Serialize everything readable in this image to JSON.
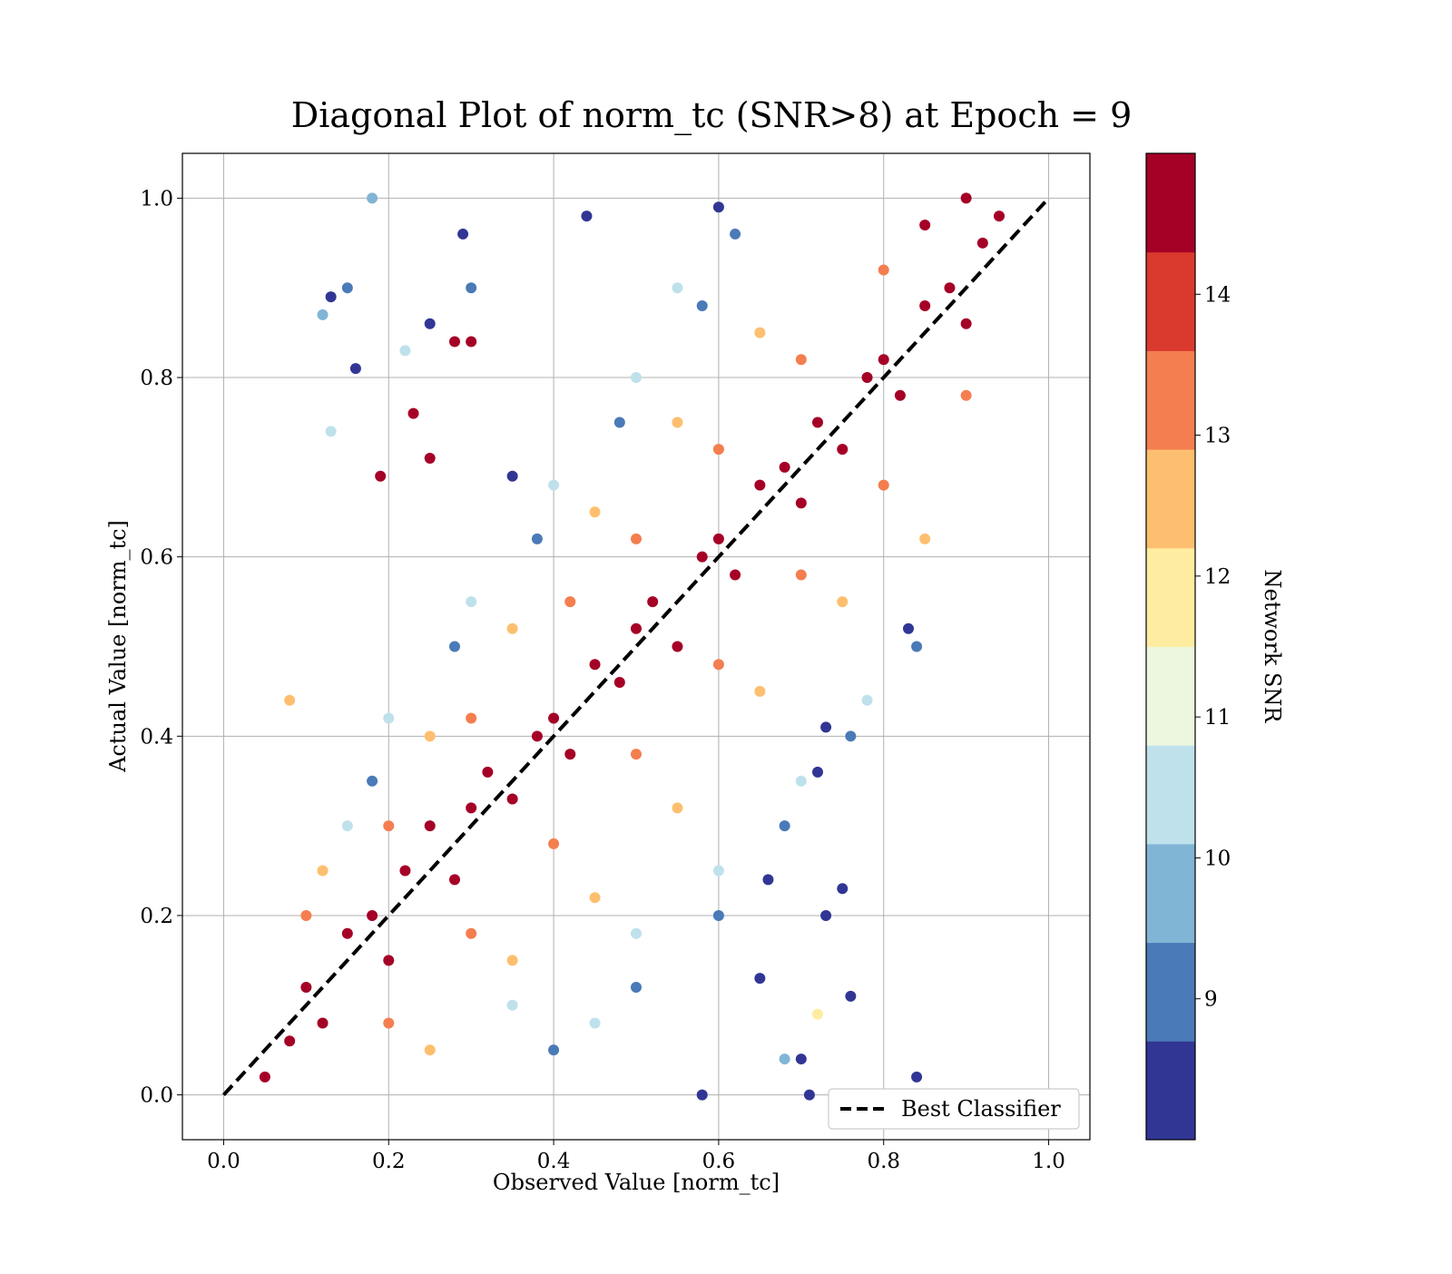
{
  "chart_data": {
    "type": "scatter",
    "title": "Diagonal Plot of norm_tc (SNR>8) at Epoch = 9",
    "xlabel": "Observed Value [norm_tc]",
    "ylabel": "Actual Value [norm_tc]",
    "xlim": [
      -0.05,
      1.05
    ],
    "ylim": [
      -0.05,
      1.05
    ],
    "xticks": [
      0.0,
      0.2,
      0.4,
      0.6,
      0.8,
      1.0
    ],
    "yticks": [
      0.0,
      0.2,
      0.4,
      0.6,
      0.8,
      1.0
    ],
    "xtick_labels": [
      "0.0",
      "0.2",
      "0.4",
      "0.6",
      "0.8",
      "1.0"
    ],
    "ytick_labels": [
      "0.0",
      "0.2",
      "0.4",
      "0.6",
      "0.8",
      "1.0"
    ],
    "grid": true,
    "reference_line": {
      "label": "Best Classifier",
      "style": "dashed",
      "color": "#000000",
      "x": [
        0.0,
        1.0
      ],
      "y": [
        0.0,
        1.0
      ]
    },
    "legend": {
      "entries": [
        "Best Classifier"
      ],
      "placement": "lower-right"
    },
    "colorbar": {
      "label": "Network SNR",
      "range": [
        8,
        15
      ],
      "tick_values": [
        9,
        10,
        11,
        12,
        13,
        14
      ],
      "tick_labels": [
        "9",
        "10",
        "11",
        "12",
        "13",
        "14"
      ],
      "bins": [
        {
          "from": 8.0,
          "to": 8.7,
          "color": "#313695"
        },
        {
          "from": 8.7,
          "to": 9.4,
          "color": "#4a7ab7"
        },
        {
          "from": 9.4,
          "to": 10.1,
          "color": "#81b5d5"
        },
        {
          "from": 10.1,
          "to": 10.8,
          "color": "#bfe1ec"
        },
        {
          "from": 10.8,
          "to": 11.5,
          "color": "#edf7e0"
        },
        {
          "from": 11.5,
          "to": 12.2,
          "color": "#feeda1"
        },
        {
          "from": 12.2,
          "to": 12.9,
          "color": "#fdbf6f"
        },
        {
          "from": 12.9,
          "to": 13.6,
          "color": "#f47e4f"
        },
        {
          "from": 13.6,
          "to": 14.3,
          "color": "#da3a2e"
        },
        {
          "from": 14.3,
          "to": 15.0,
          "color": "#a50026"
        }
      ]
    },
    "points_note": "",
    "series": [
      {
        "name": "",
        "points": [
          [
            0.05,
            0.02,
            15
          ],
          [
            0.08,
            0.06,
            15
          ],
          [
            0.1,
            0.12,
            15
          ],
          [
            0.12,
            0.08,
            15
          ],
          [
            0.15,
            0.18,
            15
          ],
          [
            0.18,
            0.2,
            15
          ],
          [
            0.2,
            0.15,
            15
          ],
          [
            0.22,
            0.25,
            15
          ],
          [
            0.25,
            0.3,
            15
          ],
          [
            0.28,
            0.24,
            15
          ],
          [
            0.3,
            0.32,
            15
          ],
          [
            0.32,
            0.36,
            15
          ],
          [
            0.35,
            0.33,
            15
          ],
          [
            0.38,
            0.4,
            15
          ],
          [
            0.4,
            0.42,
            15
          ],
          [
            0.42,
            0.38,
            15
          ],
          [
            0.45,
            0.48,
            15
          ],
          [
            0.48,
            0.46,
            15
          ],
          [
            0.5,
            0.52,
            15
          ],
          [
            0.52,
            0.55,
            15
          ],
          [
            0.55,
            0.5,
            15
          ],
          [
            0.58,
            0.6,
            15
          ],
          [
            0.6,
            0.62,
            15
          ],
          [
            0.62,
            0.58,
            15
          ],
          [
            0.65,
            0.68,
            15
          ],
          [
            0.68,
            0.7,
            15
          ],
          [
            0.7,
            0.66,
            15
          ],
          [
            0.72,
            0.75,
            15
          ],
          [
            0.75,
            0.72,
            15
          ],
          [
            0.78,
            0.8,
            15
          ],
          [
            0.8,
            0.82,
            15
          ],
          [
            0.82,
            0.78,
            15
          ],
          [
            0.85,
            0.88,
            15
          ],
          [
            0.88,
            0.9,
            15
          ],
          [
            0.9,
            0.86,
            15
          ],
          [
            0.92,
            0.95,
            15
          ],
          [
            0.94,
            0.98,
            15
          ],
          [
            0.9,
            1.0,
            15
          ],
          [
            0.85,
            0.97,
            15
          ],
          [
            0.1,
            0.2,
            13.5
          ],
          [
            0.2,
            0.3,
            13.5
          ],
          [
            0.3,
            0.42,
            13.5
          ],
          [
            0.42,
            0.55,
            13.5
          ],
          [
            0.5,
            0.62,
            13.5
          ],
          [
            0.6,
            0.72,
            13.5
          ],
          [
            0.7,
            0.82,
            13.5
          ],
          [
            0.8,
            0.92,
            13.5
          ],
          [
            0.2,
            0.08,
            13.5
          ],
          [
            0.3,
            0.18,
            13.5
          ],
          [
            0.4,
            0.28,
            13.5
          ],
          [
            0.5,
            0.38,
            13.5
          ],
          [
            0.6,
            0.48,
            13.5
          ],
          [
            0.7,
            0.58,
            13.5
          ],
          [
            0.8,
            0.68,
            13.5
          ],
          [
            0.9,
            0.78,
            13.5
          ],
          [
            0.12,
            0.25,
            12.5
          ],
          [
            0.25,
            0.4,
            12.5
          ],
          [
            0.35,
            0.52,
            12.5
          ],
          [
            0.45,
            0.65,
            12.5
          ],
          [
            0.55,
            0.75,
            12.5
          ],
          [
            0.65,
            0.85,
            12.5
          ],
          [
            0.25,
            0.05,
            12.5
          ],
          [
            0.35,
            0.15,
            12.5
          ],
          [
            0.45,
            0.22,
            12.5
          ],
          [
            0.55,
            0.32,
            12.5
          ],
          [
            0.65,
            0.45,
            12.5
          ],
          [
            0.75,
            0.55,
            12.5
          ],
          [
            0.85,
            0.62,
            12.5
          ],
          [
            0.08,
            0.44,
            12.5
          ],
          [
            0.72,
            0.09,
            12
          ],
          [
            0.15,
            0.3,
            10.5
          ],
          [
            0.2,
            0.42,
            10.5
          ],
          [
            0.3,
            0.55,
            10.5
          ],
          [
            0.4,
            0.68,
            10.5
          ],
          [
            0.5,
            0.8,
            10.5
          ],
          [
            0.55,
            0.9,
            10.5
          ],
          [
            0.35,
            0.1,
            10.5
          ],
          [
            0.45,
            0.08,
            10.5
          ],
          [
            0.5,
            0.18,
            10.5
          ],
          [
            0.6,
            0.25,
            10.5
          ],
          [
            0.7,
            0.35,
            10.5
          ],
          [
            0.78,
            0.44,
            10.5
          ],
          [
            0.12,
            0.87,
            10
          ],
          [
            0.13,
            0.74,
            10.5
          ],
          [
            0.22,
            0.83,
            10.5
          ],
          [
            0.18,
            1.0,
            10
          ],
          [
            0.68,
            0.04,
            10
          ],
          [
            0.18,
            0.35,
            9
          ],
          [
            0.28,
            0.5,
            9
          ],
          [
            0.38,
            0.62,
            9
          ],
          [
            0.48,
            0.75,
            9
          ],
          [
            0.58,
            0.88,
            9
          ],
          [
            0.62,
            0.96,
            9
          ],
          [
            0.4,
            0.05,
            9
          ],
          [
            0.5,
            0.12,
            9
          ],
          [
            0.6,
            0.2,
            9
          ],
          [
            0.68,
            0.3,
            9
          ],
          [
            0.76,
            0.4,
            9
          ],
          [
            0.84,
            0.5,
            9
          ],
          [
            0.15,
            0.9,
            9
          ],
          [
            0.3,
            0.9,
            9
          ],
          [
            0.13,
            0.89,
            8.2
          ],
          [
            0.16,
            0.81,
            8.2
          ],
          [
            0.25,
            0.86,
            8.2
          ],
          [
            0.29,
            0.96,
            8.2
          ],
          [
            0.35,
            0.69,
            8.2
          ],
          [
            0.44,
            0.98,
            8.2
          ],
          [
            0.6,
            0.99,
            8.2
          ],
          [
            0.66,
            0.24,
            8.2
          ],
          [
            0.73,
            0.2,
            8.2
          ],
          [
            0.75,
            0.23,
            8.2
          ],
          [
            0.72,
            0.36,
            8.2
          ],
          [
            0.73,
            0.41,
            8.2
          ],
          [
            0.76,
            0.11,
            8.2
          ],
          [
            0.84,
            0.02,
            8.2
          ],
          [
            0.83,
            0.52,
            8.2
          ],
          [
            0.7,
            0.04,
            8.2
          ],
          [
            0.65,
            0.13,
            8.2
          ],
          [
            0.71,
            0.0,
            8.2
          ],
          [
            0.58,
            0.0,
            8.2
          ],
          [
            0.28,
            0.84,
            15
          ],
          [
            0.3,
            0.84,
            15
          ],
          [
            0.23,
            0.76,
            15
          ],
          [
            0.25,
            0.71,
            15
          ],
          [
            0.19,
            0.69,
            15
          ]
        ]
      }
    ]
  }
}
